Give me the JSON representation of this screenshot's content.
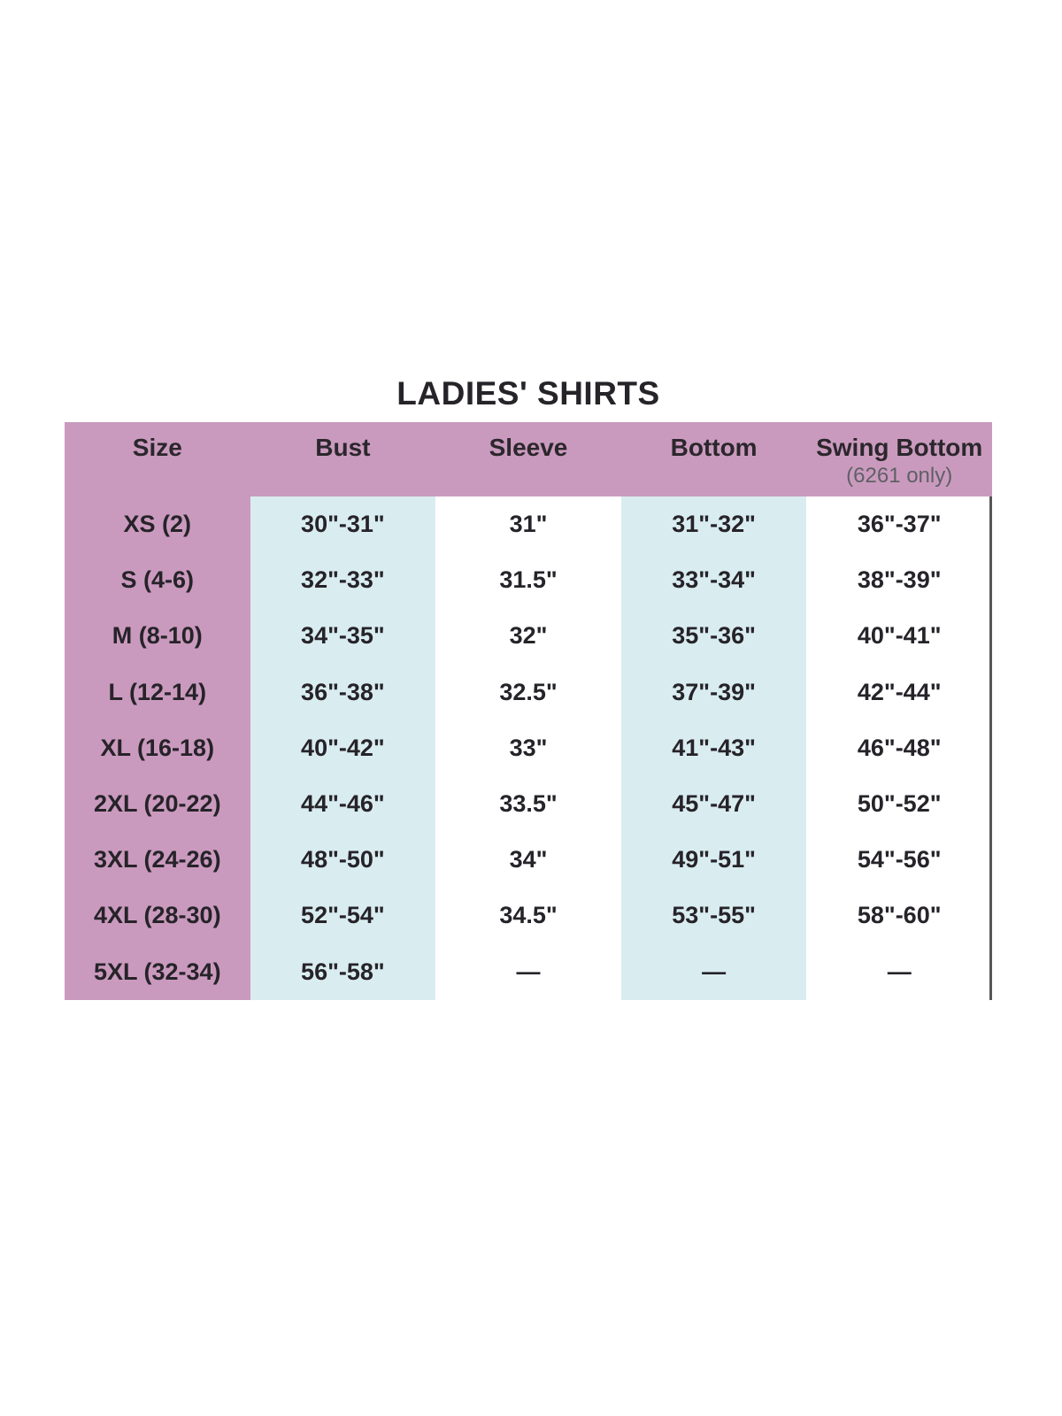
{
  "title": "LADIES' SHIRTS",
  "table": {
    "columns": [
      "Size",
      "Bust",
      "Sleeve",
      "Bottom",
      "Swing Bottom"
    ],
    "swing_sublabel": "(6261 only)",
    "rows": [
      [
        "XS (2)",
        "30\"-31\"",
        "31\"",
        "31\"-32\"",
        "36\"-37\""
      ],
      [
        "S (4-6)",
        "32\"-33\"",
        "31.5\"",
        "33\"-34\"",
        "38\"-39\""
      ],
      [
        "M (8-10)",
        "34\"-35\"",
        "32\"",
        "35\"-36\"",
        "40\"-41\""
      ],
      [
        "L (12-14)",
        "36\"-38\"",
        "32.5\"",
        "37\"-39\"",
        "42\"-44\""
      ],
      [
        "XL (16-18)",
        "40\"-42\"",
        "33\"",
        "41\"-43\"",
        "46\"-48\""
      ],
      [
        "2XL (20-22)",
        "44\"-46\"",
        "33.5\"",
        "45\"-47\"",
        "50\"-52\""
      ],
      [
        "3XL (24-26)",
        "48\"-50\"",
        "34\"",
        "49\"-51\"",
        "54\"-56\""
      ],
      [
        "4XL (28-30)",
        "52\"-54\"",
        "34.5\"",
        "53\"-55\"",
        "58\"-60\""
      ],
      [
        "5XL (32-34)",
        "56\"-58\"",
        "—",
        "—",
        "—"
      ]
    ]
  },
  "colors": {
    "header_bg": "#ca9abe",
    "size_column_bg": "#ca9abe",
    "alt_column_bg": "#d9edf0",
    "text": "#262329",
    "sublabel_text": "#5f6065",
    "right_border": "#55555a"
  }
}
